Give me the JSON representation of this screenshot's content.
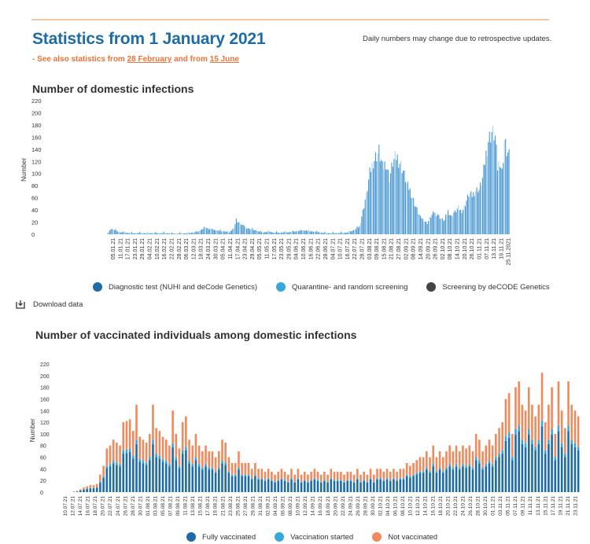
{
  "header": {
    "title": "Statistics from 1 January 2021",
    "note": "Daily numbers may change due to retrospective updates.",
    "sub_prefix": "- See also statistics from ",
    "sub_link1": "28 February",
    "sub_mid": " and from ",
    "sub_link2": "15 June"
  },
  "download_label": "Download data",
  "chart_data": [
    {
      "type": "bar",
      "title": "Number of domestic infections",
      "ylabel": "Number",
      "ylim": [
        0,
        220
      ],
      "yticks": [
        0,
        20,
        40,
        60,
        80,
        100,
        120,
        140,
        160,
        180,
        200,
        220
      ],
      "xticks": [
        "05.01.21",
        "11.01.21",
        "17.01.21",
        "23.01.21",
        "29.01.21",
        "04.02.21",
        "10.02.21",
        "16.02.21",
        "22.02.21",
        "28.02.21",
        "06.03.21",
        "12.03.21",
        "18.03.21",
        "24.03.21",
        "30.03.21",
        "05.04.21",
        "11.04.21",
        "17.04.21",
        "23.04.21",
        "29.04.21",
        "05.05.21",
        "11.05.21",
        "17.05.21",
        "23.05.21",
        "29.05.21",
        "04.06.21",
        "10.06.21",
        "16.06.21",
        "22.06.21",
        "28.06.21",
        "04.07.21",
        "10.07.21",
        "16.07.21",
        "22.07.21",
        "28.07.21",
        "03.08.21",
        "09.08.21",
        "15.08.21",
        "21.08.21",
        "27.08.21",
        "02.09.21",
        "08.09.21",
        "14.09.21",
        "20.09.21",
        "26.09.21",
        "02.10.21",
        "08.10.21",
        "14.10.21",
        "20.10.21",
        "26.10.21",
        "01.11.21",
        "07.11.21",
        "13.11.21",
        "19.11.21",
        "25.11.2021"
      ],
      "legend": [
        {
          "name": "Diagnostic test (NUHI and deCode Genetics)",
          "color": "#1f6ba6"
        },
        {
          "name": "Quarantine- and random screening",
          "color": "#38a7dc"
        },
        {
          "name": "Screening by deCODE Genetics",
          "color": "#444444"
        }
      ],
      "colors": {
        "bar": "#4a97cf",
        "bar_light": "#a9d3ef"
      },
      "ycurve": [
        [
          0,
          0
        ],
        [
          3,
          10
        ],
        [
          6,
          8
        ],
        [
          10,
          4
        ],
        [
          20,
          2
        ],
        [
          30,
          2
        ],
        [
          40,
          2
        ],
        [
          50,
          2
        ],
        [
          60,
          1
        ],
        [
          70,
          2
        ],
        [
          78,
          4
        ],
        [
          85,
          12
        ],
        [
          92,
          8
        ],
        [
          97,
          6
        ],
        [
          103,
          5
        ],
        [
          106,
          3
        ],
        [
          110,
          12
        ],
        [
          112,
          25
        ],
        [
          115,
          20
        ],
        [
          120,
          12
        ],
        [
          127,
          8
        ],
        [
          135,
          3
        ],
        [
          140,
          5
        ],
        [
          145,
          3
        ],
        [
          150,
          3
        ],
        [
          160,
          4
        ],
        [
          170,
          7
        ],
        [
          175,
          6
        ],
        [
          182,
          4
        ],
        [
          190,
          2
        ],
        [
          200,
          2
        ],
        [
          208,
          3
        ],
        [
          215,
          8
        ],
        [
          219,
          14
        ],
        [
          225,
          70
        ],
        [
          228,
          110
        ],
        [
          230,
          125
        ],
        [
          233,
          140
        ],
        [
          236,
          150
        ],
        [
          239,
          120
        ],
        [
          242,
          130
        ],
        [
          245,
          100
        ],
        [
          248,
          130
        ],
        [
          251,
          140
        ],
        [
          254,
          130
        ],
        [
          257,
          115
        ],
        [
          260,
          90
        ],
        [
          263,
          80
        ],
        [
          266,
          60
        ],
        [
          269,
          45
        ],
        [
          272,
          30
        ],
        [
          275,
          25
        ],
        [
          278,
          20
        ],
        [
          281,
          32
        ],
        [
          284,
          40
        ],
        [
          287,
          35
        ],
        [
          290,
          28
        ],
        [
          293,
          25
        ],
        [
          296,
          42
        ],
        [
          299,
          32
        ],
        [
          302,
          40
        ],
        [
          305,
          48
        ],
        [
          308,
          40
        ],
        [
          311,
          55
        ],
        [
          314,
          72
        ],
        [
          317,
          70
        ],
        [
          320,
          80
        ],
        [
          323,
          80
        ],
        [
          326,
          100
        ],
        [
          328,
          130
        ],
        [
          331,
          170
        ],
        [
          334,
          185
        ],
        [
          337,
          175
        ],
        [
          339,
          120
        ],
        [
          341,
          135
        ],
        [
          343,
          110
        ],
        [
          345,
          170
        ],
        [
          347,
          150
        ],
        [
          349,
          140
        ]
      ]
    },
    {
      "type": "bar",
      "title": "Number of vaccinated individuals among domestic infections",
      "ylabel": "Number",
      "ylim": [
        0,
        220
      ],
      "yticks": [
        0,
        20,
        40,
        60,
        80,
        100,
        120,
        140,
        160,
        180,
        200,
        220
      ],
      "xticks": [
        "10.07.21",
        "12.07.21",
        "14.07.21",
        "16.07.21",
        "18.07.21",
        "20.07.21",
        "22.07.21",
        "24.07.21",
        "26.07.21",
        "28.07.21",
        "30.07.21",
        "01.08.21",
        "03.08.21",
        "05.08.21",
        "07.08.21",
        "09.08.21",
        "11.08.21",
        "13.08.21",
        "15.08.21",
        "17.08.21",
        "19.08.21",
        "21.08.21",
        "23.08.21",
        "25.08.21",
        "27.08.21",
        "29.08.21",
        "31.08.21",
        "02.09.21",
        "04.09.21",
        "06.09.21",
        "08.09.21",
        "10.09.21",
        "12.09.21",
        "14.09.21",
        "16.09.21",
        "18.09.21",
        "20.09.21",
        "22.09.21",
        "24.09.21",
        "26.09.21",
        "28.09.21",
        "30.09.21",
        "02.10.21",
        "04.10.21",
        "06.10.21",
        "08.10.21",
        "10.10.21",
        "12.10.21",
        "14.10.21",
        "16.10.21",
        "18.10.21",
        "20.10.21",
        "22.10.21",
        "24.10.21",
        "26.10.21",
        "28.10.21",
        "30.10.21",
        "01.11.21",
        "03.11.21",
        "05.11.21",
        "07.11.21",
        "09.11.21",
        "11.11.21",
        "13.11.21",
        "15.11.21",
        "17.11.21",
        "19.11.21",
        "21.11.21",
        "23.11.21"
      ],
      "legend": [
        {
          "name": "Fully vaccinated",
          "color": "#1f6ba6"
        },
        {
          "name": "Vaccination started",
          "color": "#38a7dc"
        },
        {
          "name": "Not vaccinated",
          "color": "#f08a5d"
        }
      ],
      "totals": [
        0,
        0,
        0,
        1,
        2,
        5,
        8,
        10,
        12,
        12,
        14,
        30,
        45,
        75,
        80,
        90,
        85,
        80,
        120,
        122,
        125,
        105,
        150,
        95,
        90,
        85,
        100,
        150,
        110,
        105,
        95,
        90,
        80,
        140,
        100,
        75,
        120,
        130,
        90,
        80,
        100,
        80,
        70,
        80,
        70,
        70,
        60,
        70,
        90,
        85,
        60,
        50,
        50,
        70,
        50,
        50,
        50,
        40,
        50,
        40,
        40,
        35,
        40,
        35,
        30,
        35,
        40,
        35,
        30,
        40,
        30,
        40,
        30,
        35,
        30,
        35,
        40,
        35,
        30,
        35,
        30,
        40,
        35,
        35,
        35,
        30,
        35,
        35,
        30,
        40,
        30,
        35,
        30,
        40,
        30,
        40,
        40,
        35,
        40,
        35,
        40,
        35,
        40,
        40,
        50,
        45,
        50,
        55,
        60,
        60,
        70,
        60,
        80,
        60,
        70,
        60,
        70,
        80,
        70,
        80,
        70,
        80,
        75,
        80,
        70,
        100,
        90,
        70,
        80,
        90,
        80,
        100,
        110,
        120,
        160,
        170,
        100,
        180,
        190,
        150,
        140,
        180,
        150,
        130,
        150,
        205,
        120,
        150,
        180,
        100,
        190,
        140,
        110,
        190,
        150,
        140,
        130
      ]
    }
  ]
}
